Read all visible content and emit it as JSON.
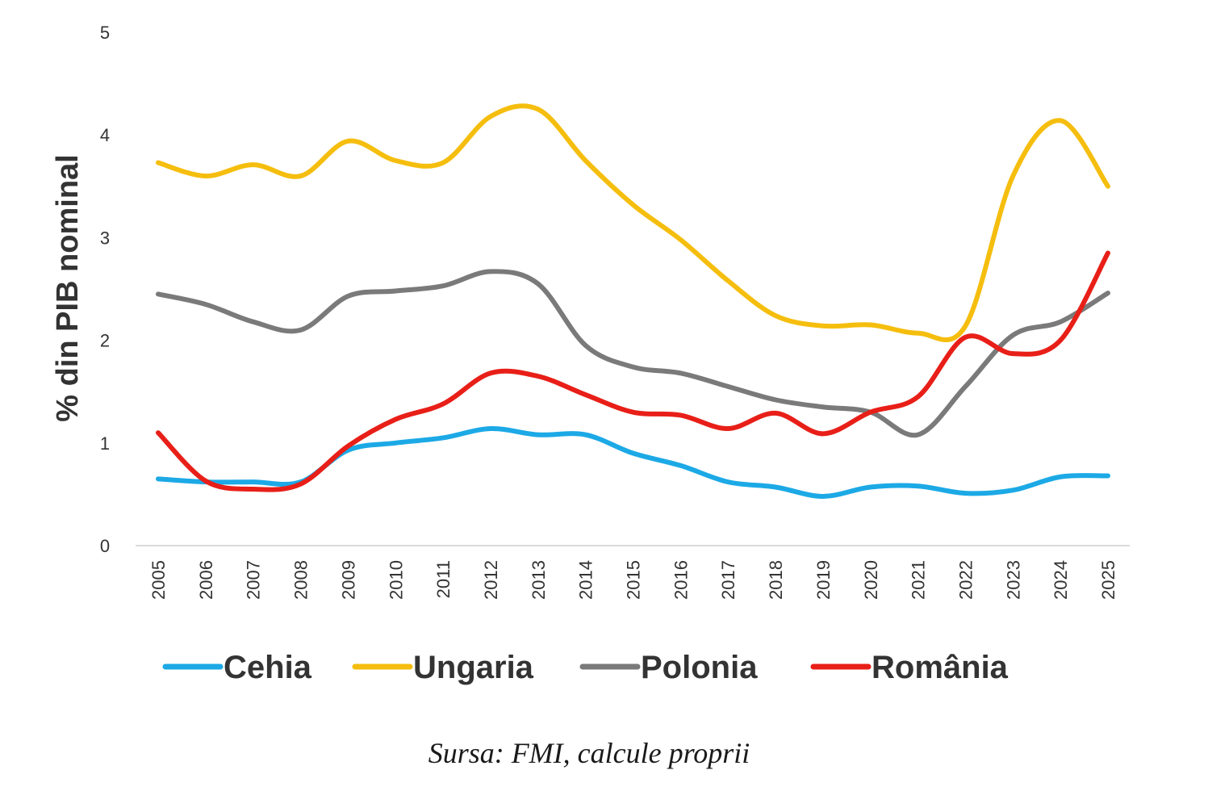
{
  "chart_data": {
    "type": "line",
    "title": "",
    "xlabel": "",
    "ylabel": "% din PIB nominal",
    "ylim": [
      0,
      5
    ],
    "yticks": [
      "0",
      "1",
      "2",
      "3",
      "4",
      "5"
    ],
    "grid": false,
    "legend_position": "bottom",
    "categories": [
      "2005",
      "2006",
      "2007",
      "2008",
      "2009",
      "2010",
      "2011",
      "2012",
      "2013",
      "2014",
      "2015",
      "2016",
      "2017",
      "2018",
      "2019",
      "2020",
      "2021",
      "2022",
      "2023",
      "2024",
      "2025"
    ],
    "series": [
      {
        "name": "Cehia",
        "color": "#1CA9E6",
        "values": [
          0.65,
          0.62,
          0.62,
          0.62,
          0.93,
          1.0,
          1.05,
          1.14,
          1.08,
          1.08,
          0.9,
          0.78,
          0.62,
          0.57,
          0.48,
          0.57,
          0.58,
          0.51,
          0.54,
          0.67,
          0.68
        ]
      },
      {
        "name": "Ungaria",
        "color": "#F5BE0E",
        "values": [
          3.73,
          3.6,
          3.71,
          3.6,
          3.94,
          3.75,
          3.73,
          4.18,
          4.25,
          3.75,
          3.32,
          2.98,
          2.58,
          2.24,
          2.14,
          2.15,
          2.07,
          2.14,
          3.6,
          4.14,
          3.5
        ]
      },
      {
        "name": "Polonia",
        "color": "#7A7A7A",
        "values": [
          2.45,
          2.35,
          2.18,
          2.1,
          2.43,
          2.48,
          2.53,
          2.67,
          2.55,
          1.95,
          1.74,
          1.68,
          1.55,
          1.42,
          1.35,
          1.3,
          1.08,
          1.55,
          2.05,
          2.18,
          2.46
        ]
      },
      {
        "name": "România",
        "color": "#E81F18",
        "values": [
          1.1,
          0.63,
          0.55,
          0.6,
          0.97,
          1.23,
          1.38,
          1.68,
          1.65,
          1.47,
          1.3,
          1.27,
          1.14,
          1.29,
          1.09,
          1.3,
          1.45,
          2.03,
          1.87,
          2.0,
          2.85
        ]
      }
    ]
  },
  "source": "Sursa: FMI, calcule proprii"
}
